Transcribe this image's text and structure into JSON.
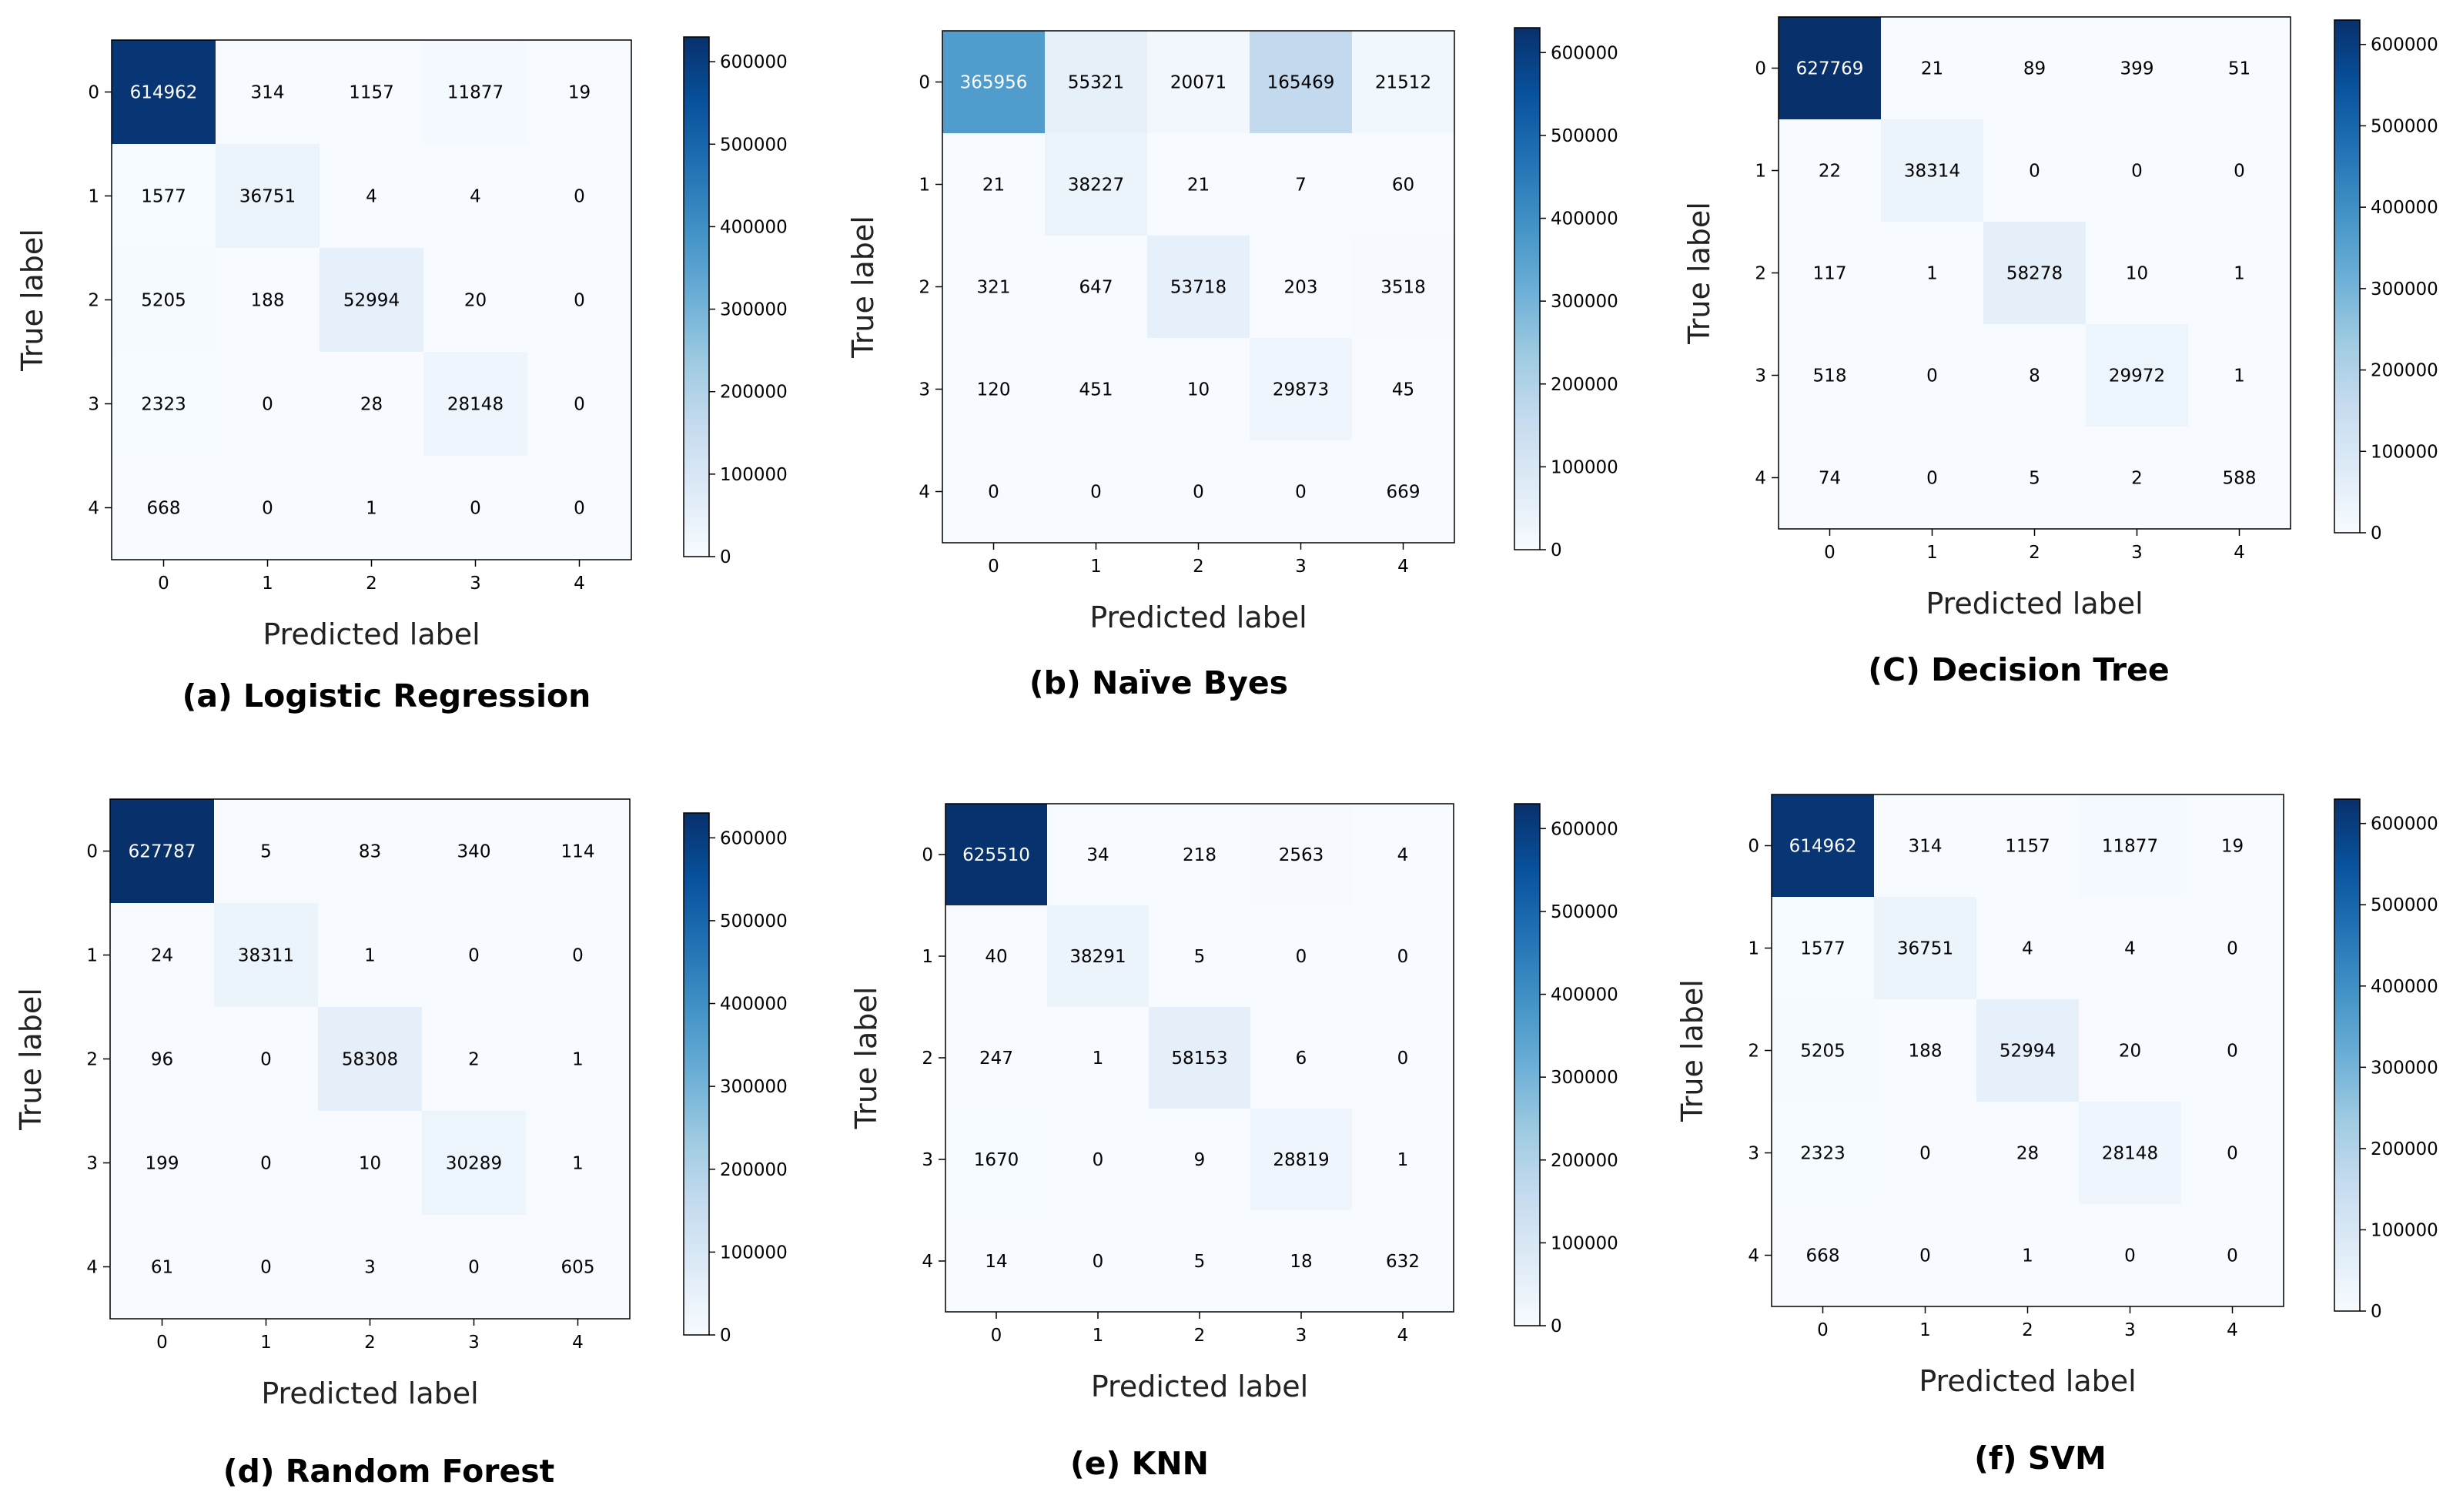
{
  "chart_data": [
    {
      "type": "heatmap",
      "caption": "(a) Logistic Regression",
      "xlabel": "Predicted label",
      "ylabel": "True label",
      "x_ticks": [
        "0",
        "1",
        "2",
        "3",
        "4"
      ],
      "y_ticks": [
        "0",
        "1",
        "2",
        "3",
        "4"
      ],
      "colorbar_ticks": [
        0,
        100000,
        200000,
        300000,
        400000,
        500000,
        600000
      ],
      "colorbar_tick_labels": [
        "0",
        "100000",
        "200000",
        "300000",
        "400000",
        "500000",
        "600000"
      ],
      "matrix": [
        [
          614962,
          314,
          1157,
          11877,
          19
        ],
        [
          1577,
          36751,
          4,
          4,
          0
        ],
        [
          5205,
          188,
          52994,
          20,
          0
        ],
        [
          2323,
          0,
          28,
          28148,
          0
        ],
        [
          668,
          0,
          1,
          0,
          0
        ]
      ],
      "cell_labels": [
        [
          "614962",
          "314",
          "1157",
          "11877",
          "19"
        ],
        [
          "1577",
          "36751",
          "4",
          "4",
          "0"
        ],
        [
          "5205",
          "188",
          "52994",
          "20",
          "0"
        ],
        [
          "2323",
          "0",
          "28",
          "28148",
          "0"
        ],
        [
          "668",
          "0",
          "1",
          "0",
          "0"
        ]
      ]
    },
    {
      "type": "heatmap",
      "caption": "(b) Naïve Byes",
      "xlabel": "Predicted label",
      "ylabel": "True label",
      "x_ticks": [
        "0",
        "1",
        "2",
        "3",
        "4"
      ],
      "y_ticks": [
        "0",
        "1",
        "2",
        "3",
        "4"
      ],
      "colorbar_ticks": [
        0,
        100000,
        200000,
        300000,
        400000,
        500000,
        600000
      ],
      "colorbar_tick_labels": [
        "0",
        "100000",
        "200000",
        "300000",
        "400000",
        "500000",
        "600000"
      ],
      "matrix": [
        [
          365956,
          55321,
          20071,
          165469,
          21512
        ],
        [
          21,
          38227,
          21,
          7,
          60
        ],
        [
          321,
          647,
          53718,
          203,
          3518
        ],
        [
          120,
          451,
          10,
          29873,
          45
        ],
        [
          0,
          0,
          0,
          0,
          669
        ]
      ],
      "cell_labels": [
        [
          "365956",
          "55321",
          "20071",
          "165469",
          "21512"
        ],
        [
          "21",
          "38227",
          "21",
          "7",
          "60"
        ],
        [
          "321",
          "647",
          "53718",
          "203",
          "3518"
        ],
        [
          "120",
          "451",
          "10",
          "29873",
          "45"
        ],
        [
          "0",
          "0",
          "0",
          "0",
          "669"
        ]
      ]
    },
    {
      "type": "heatmap",
      "caption": "(C) Decision Tree",
      "xlabel": "Predicted label",
      "ylabel": "True label",
      "x_ticks": [
        "0",
        "1",
        "2",
        "3",
        "4"
      ],
      "y_ticks": [
        "0",
        "1",
        "2",
        "3",
        "4"
      ],
      "colorbar_ticks": [
        0,
        100000,
        200000,
        300000,
        400000,
        500000,
        600000
      ],
      "colorbar_tick_labels": [
        "0",
        "100000",
        "200000",
        "300000",
        "400000",
        "500000",
        "600000"
      ],
      "matrix": [
        [
          627769,
          21,
          89,
          399,
          51
        ],
        [
          22,
          38314,
          0,
          0,
          0
        ],
        [
          117,
          1,
          58278,
          10,
          1
        ],
        [
          518,
          0,
          8,
          29972,
          1
        ],
        [
          74,
          0,
          5,
          2,
          588
        ]
      ],
      "cell_labels": [
        [
          "627769",
          "21",
          "89",
          "399",
          "51"
        ],
        [
          "22",
          "38314",
          "0",
          "0",
          "0"
        ],
        [
          "117",
          "1",
          "58278",
          "10",
          "1"
        ],
        [
          "518",
          "0",
          "8",
          "29972",
          "1"
        ],
        [
          "74",
          "0",
          "5",
          "2",
          "588"
        ]
      ]
    },
    {
      "type": "heatmap",
      "caption": "(d) Random Forest",
      "xlabel": "Predicted label",
      "ylabel": "True label",
      "x_ticks": [
        "0",
        "1",
        "2",
        "3",
        "4"
      ],
      "y_ticks": [
        "0",
        "1",
        "2",
        "3",
        "4"
      ],
      "colorbar_ticks": [
        0,
        100000,
        200000,
        300000,
        400000,
        500000,
        600000
      ],
      "colorbar_tick_labels": [
        "0",
        "100000",
        "200000",
        "300000",
        "400000",
        "500000",
        "600000"
      ],
      "matrix": [
        [
          627787,
          5,
          83,
          340,
          114
        ],
        [
          24,
          38311,
          1,
          0,
          0
        ],
        [
          96,
          0,
          58308,
          2,
          1
        ],
        [
          199,
          0,
          10,
          30289,
          1
        ],
        [
          61,
          0,
          3,
          0,
          605
        ]
      ],
      "cell_labels": [
        [
          "627787",
          "5",
          "83",
          "340",
          "114"
        ],
        [
          "24",
          "38311",
          "1",
          "0",
          "0"
        ],
        [
          "96",
          "0",
          "58308",
          "2",
          "1"
        ],
        [
          "199",
          "0",
          "10",
          "30289",
          "1"
        ],
        [
          "61",
          "0",
          "3",
          "0",
          "605"
        ]
      ]
    },
    {
      "type": "heatmap",
      "caption": "(e) KNN",
      "xlabel": "Predicted label",
      "ylabel": "True label",
      "x_ticks": [
        "0",
        "1",
        "2",
        "3",
        "4"
      ],
      "y_ticks": [
        "0",
        "1",
        "2",
        "3",
        "4"
      ],
      "colorbar_ticks": [
        0,
        100000,
        200000,
        300000,
        400000,
        500000,
        600000
      ],
      "colorbar_tick_labels": [
        "0",
        "100000",
        "200000",
        "300000",
        "400000",
        "500000",
        "600000"
      ],
      "matrix": [
        [
          625510,
          34,
          218,
          2563,
          4
        ],
        [
          40,
          38291,
          5,
          0,
          0
        ],
        [
          247,
          1,
          58153,
          6,
          0
        ],
        [
          1670,
          0,
          9,
          28819,
          1
        ],
        [
          14,
          0,
          5,
          18,
          632
        ]
      ],
      "cell_labels": [
        [
          "625510",
          "34",
          "218",
          "2563",
          "4"
        ],
        [
          "40",
          "38291",
          "5",
          "0",
          "0"
        ],
        [
          "247",
          "1",
          "58153",
          "6",
          "0"
        ],
        [
          "1670",
          "0",
          "9",
          "28819",
          "1"
        ],
        [
          "14",
          "0",
          "5",
          "18",
          "632"
        ]
      ]
    },
    {
      "type": "heatmap",
      "caption": "(f) SVM",
      "xlabel": "Predicted label",
      "ylabel": "True label",
      "x_ticks": [
        "0",
        "1",
        "2",
        "3",
        "4"
      ],
      "y_ticks": [
        "0",
        "1",
        "2",
        "3",
        "4"
      ],
      "colorbar_ticks": [
        0,
        100000,
        200000,
        300000,
        400000,
        500000,
        600000
      ],
      "colorbar_tick_labels": [
        "0",
        "100000",
        "200000",
        "300000",
        "400000",
        "500000",
        "600000"
      ],
      "matrix": [
        [
          614962,
          314,
          1157,
          11877,
          19
        ],
        [
          1577,
          36751,
          4,
          4,
          0
        ],
        [
          5205,
          188,
          52994,
          20,
          0
        ],
        [
          2323,
          0,
          28,
          28148,
          0
        ],
        [
          668,
          0,
          1,
          0,
          0
        ]
      ],
      "cell_labels": [
        [
          "614962",
          "314",
          "1157",
          "11877",
          "19"
        ],
        [
          "1577",
          "36751",
          "4",
          "4",
          "0"
        ],
        [
          "5205",
          "188",
          "52994",
          "20",
          "0"
        ],
        [
          "2323",
          "0",
          "28",
          "28148",
          "0"
        ],
        [
          "668",
          "0",
          "1",
          "0",
          "0"
        ]
      ]
    }
  ],
  "colormap": "Blues",
  "colors": {
    "low": "#f7fbff",
    "high": "#08306b",
    "text_dark": "#000000",
    "text_light": "#ffffff"
  }
}
